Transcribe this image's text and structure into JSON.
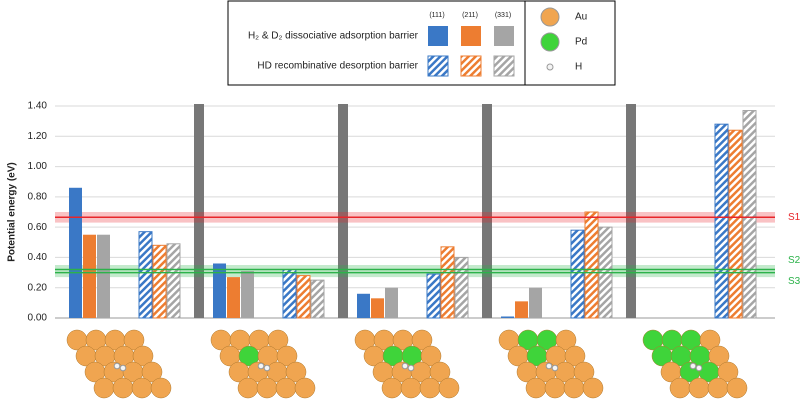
{
  "chart_data": {
    "type": "bar",
    "y_label": "Potential energy (eV)",
    "ylim": [
      0,
      1.4
    ],
    "yticks": [
      {
        "value": 0,
        "label": "0.00"
      },
      {
        "value": 0.2,
        "label": "0.20"
      },
      {
        "value": 0.4,
        "label": "0.40"
      },
      {
        "value": 0.6,
        "label": "0.60"
      },
      {
        "value": 0.8,
        "label": "0.80"
      },
      {
        "value": 1.0,
        "label": "1.00"
      },
      {
        "value": 1.2,
        "label": "1.20"
      },
      {
        "value": 1.4,
        "label": "1.40"
      }
    ],
    "grid": true,
    "facets": [
      "(111)",
      "(211)",
      "(331)"
    ],
    "facet_colors": [
      "#3a78c6",
      "#ed7d31",
      "#a5a5a5"
    ],
    "series": [
      {
        "name": "H₂ & D₂ dissociative adsorption barrier",
        "fill": "solid",
        "values": [
          [
            0.86,
            0.36,
            0.16,
            0.01,
            null
          ],
          [
            0.55,
            0.27,
            0.13,
            0.11,
            null
          ],
          [
            0.55,
            0.31,
            0.2,
            0.2,
            null
          ]
        ]
      },
      {
        "name": "HD recombinative desorption barrier",
        "fill": "hatched",
        "values": [
          [
            0.57,
            0.32,
            0.29,
            0.58,
            1.28
          ],
          [
            0.48,
            0.28,
            0.47,
            0.7,
            1.24
          ],
          [
            0.49,
            0.25,
            0.4,
            0.6,
            1.37
          ]
        ]
      }
    ],
    "reference_lines": [
      {
        "label": "S1",
        "value": 0.665,
        "band": [
          0.63,
          0.7
        ],
        "color": "#e8252a"
      },
      {
        "label": "S2",
        "value": 0.32,
        "band": [
          0.27,
          0.35
        ],
        "color": "#2cb24a"
      },
      {
        "label": "S3",
        "value": 0.3,
        "color": "#2cb24a"
      }
    ],
    "atoms": [
      {
        "name": "Au",
        "color": "#f0a550"
      },
      {
        "name": "Pd",
        "color": "#3fd43a"
      },
      {
        "name": "H",
        "color": "#f4f4f4"
      }
    ]
  }
}
